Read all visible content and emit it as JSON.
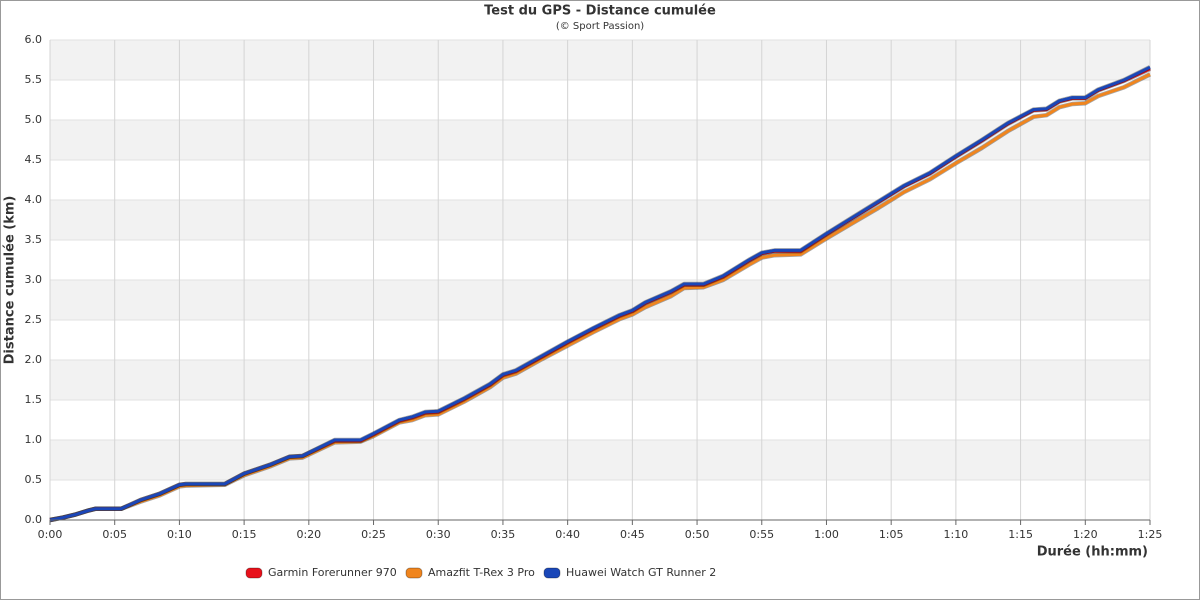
{
  "chart_data": {
    "type": "line",
    "title": "Test du GPS - Distance cumulée",
    "subtitle": "(© Sport Passion)",
    "x_label": "Durée (hh:mm)",
    "y_label": "Distance cumulée (km)",
    "x": [
      0,
      1,
      2,
      3,
      3.5,
      5.5,
      7,
      8.5,
      10,
      10.5,
      13.5,
      15,
      17,
      18.5,
      19.5,
      22,
      24,
      25,
      27,
      28,
      29,
      30,
      32,
      34,
      35,
      36,
      38,
      40,
      42,
      44,
      45,
      46,
      48,
      49,
      50.5,
      52,
      54,
      55,
      56,
      58,
      60,
      62,
      64,
      66,
      68,
      70,
      72,
      74,
      76,
      77,
      78,
      79,
      80,
      81,
      83,
      85
    ],
    "series": [
      {
        "name": "Garmin Forerunner 970",
        "color": "#e8111b",
        "values": [
          0,
          0.03,
          0.07,
          0.12,
          0.14,
          0.14,
          0.25,
          0.33,
          0.44,
          0.45,
          0.45,
          0.58,
          0.69,
          0.79,
          0.8,
          0.99,
          0.99,
          1.07,
          1.24,
          1.28,
          1.34,
          1.35,
          1.51,
          1.69,
          1.81,
          1.86,
          2.04,
          2.22,
          2.39,
          2.55,
          2.61,
          2.71,
          2.85,
          2.94,
          2.94,
          3.04,
          3.24,
          3.33,
          3.36,
          3.36,
          3.57,
          3.77,
          3.97,
          4.17,
          4.33,
          4.54,
          4.74,
          4.95,
          5.12,
          5.13,
          5.23,
          5.27,
          5.27,
          5.37,
          5.49,
          5.64
        ]
      },
      {
        "name": "Amazfit T-Rex 3 Pro",
        "color": "#f0851e",
        "values": [
          0,
          0.03,
          0.07,
          0.12,
          0.14,
          0.14,
          0.23,
          0.31,
          0.42,
          0.43,
          0.44,
          0.56,
          0.67,
          0.77,
          0.78,
          0.97,
          0.98,
          1.05,
          1.22,
          1.25,
          1.31,
          1.32,
          1.48,
          1.66,
          1.78,
          1.83,
          2.01,
          2.18,
          2.35,
          2.51,
          2.57,
          2.66,
          2.8,
          2.9,
          2.91,
          3.0,
          3.19,
          3.28,
          3.31,
          3.32,
          3.52,
          3.71,
          3.9,
          4.1,
          4.26,
          4.46,
          4.65,
          4.86,
          5.04,
          5.06,
          5.16,
          5.2,
          5.21,
          5.3,
          5.41,
          5.57
        ]
      },
      {
        "name": "Huawei Watch GT Runner 2",
        "color": "#1a47b8",
        "values": [
          0,
          0.03,
          0.07,
          0.12,
          0.14,
          0.14,
          0.25,
          0.33,
          0.44,
          0.45,
          0.45,
          0.58,
          0.69,
          0.79,
          0.8,
          1.0,
          1.0,
          1.08,
          1.25,
          1.29,
          1.35,
          1.36,
          1.52,
          1.7,
          1.82,
          1.87,
          2.05,
          2.23,
          2.4,
          2.56,
          2.62,
          2.72,
          2.86,
          2.95,
          2.95,
          3.05,
          3.25,
          3.34,
          3.37,
          3.37,
          3.58,
          3.78,
          3.98,
          4.18,
          4.34,
          4.55,
          4.75,
          4.96,
          5.13,
          5.14,
          5.24,
          5.28,
          5.28,
          5.38,
          5.5,
          5.66
        ]
      }
    ],
    "xlim": [
      0,
      85
    ],
    "xticks": [
      {
        "value": 0,
        "label": "0:00"
      },
      {
        "value": 5,
        "label": "0:05"
      },
      {
        "value": 10,
        "label": "0:10"
      },
      {
        "value": 15,
        "label": "0:15"
      },
      {
        "value": 20,
        "label": "0:20"
      },
      {
        "value": 25,
        "label": "0:25"
      },
      {
        "value": 30,
        "label": "0:30"
      },
      {
        "value": 35,
        "label": "0:35"
      },
      {
        "value": 40,
        "label": "0:40"
      },
      {
        "value": 45,
        "label": "0:45"
      },
      {
        "value": 50,
        "label": "0:50"
      },
      {
        "value": 55,
        "label": "0:55"
      },
      {
        "value": 60,
        "label": "1:00"
      },
      {
        "value": 65,
        "label": "1:05"
      },
      {
        "value": 70,
        "label": "1:10"
      },
      {
        "value": 75,
        "label": "1:15"
      },
      {
        "value": 80,
        "label": "1:20"
      },
      {
        "value": 85,
        "label": "1:25"
      }
    ],
    "ylim": [
      0,
      6
    ],
    "yticks": [
      {
        "value": 0,
        "label": "0.0"
      },
      0.5,
      {
        "value": 1,
        "label": "1.0"
      },
      1.5,
      {
        "value": 2,
        "label": "2.0"
      },
      2.5,
      {
        "value": 3,
        "label": "3.0"
      },
      3.5,
      {
        "value": 4,
        "label": "4.0"
      },
      4.5,
      {
        "value": 5,
        "label": "5.0"
      },
      5.5,
      {
        "value": 6,
        "label": "6.0"
      }
    ],
    "grid": true,
    "legend": "bottom"
  }
}
